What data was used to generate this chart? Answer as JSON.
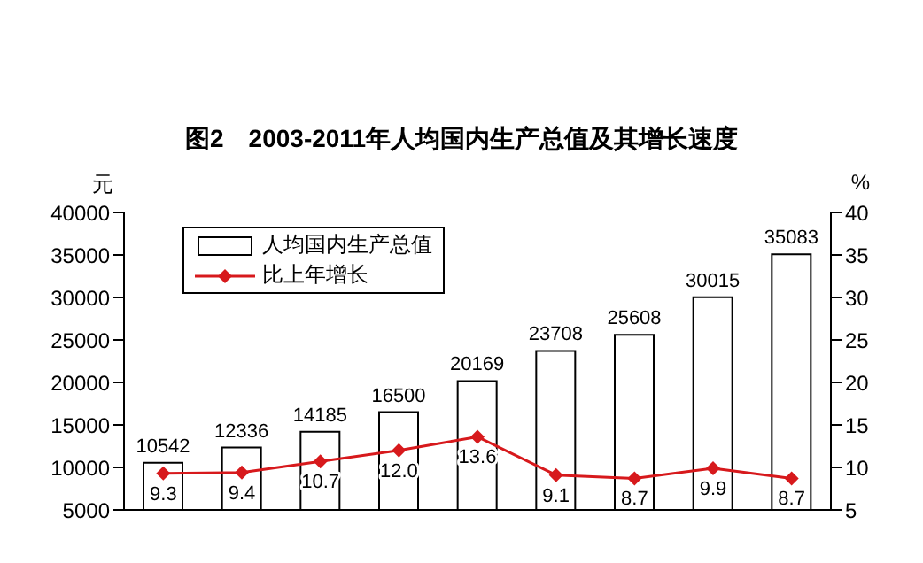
{
  "chart_data": {
    "type": "bar",
    "title": "图2　2003-2011年人均国内生产总值及其增长速度",
    "ylabel": "元",
    "y2label": "%",
    "categories": [
      null,
      null,
      null,
      null,
      null,
      null,
      null,
      null,
      null
    ],
    "series": [
      {
        "name": "人均国内生产总值",
        "color": "#ffffff",
        "values": [
          10542,
          12336,
          14185,
          16500,
          20169,
          23708,
          25608,
          30015,
          35083
        ]
      },
      {
        "name": "比上年增长",
        "type": "line",
        "axis": "y2",
        "color": "#d7191c",
        "marker": "diamond",
        "values": [
          9.3,
          9.4,
          10.7,
          12.0,
          13.6,
          9.1,
          8.7,
          9.9,
          8.7
        ],
        "value_labels": [
          "9.3",
          "9.4",
          "10.7",
          "12.0",
          "13.6",
          "9.1",
          "8.7",
          "9.9",
          "8.7"
        ]
      }
    ],
    "ylim": [
      5000,
      40000
    ],
    "yticks": [
      5000,
      10000,
      15000,
      20000,
      25000,
      30000,
      35000,
      40000
    ],
    "y2lim": [
      5,
      40
    ],
    "y2ticks": [
      5,
      10,
      15,
      20,
      25,
      30,
      35,
      40
    ],
    "data_labels": true,
    "legend": "top left",
    "grid": false
  }
}
